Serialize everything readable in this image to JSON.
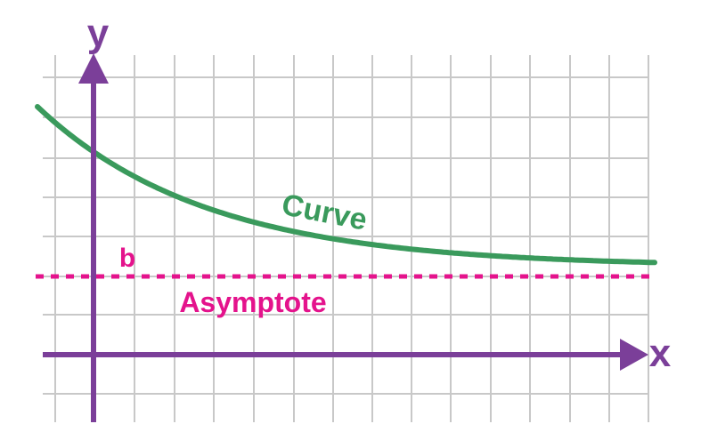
{
  "labels": {
    "y_axis": "y",
    "x_axis": "x",
    "curve": "Curve",
    "asymptote": "Asymptote",
    "b": "b"
  },
  "colors": {
    "grid": "#c8c8c8",
    "axis": "#7b3f99",
    "curve": "#3a9a5c",
    "asymptote": "#e4138c"
  },
  "icons": {
    "x_arrow": "arrow-right-icon",
    "y_arrow": "arrow-up-icon"
  }
}
